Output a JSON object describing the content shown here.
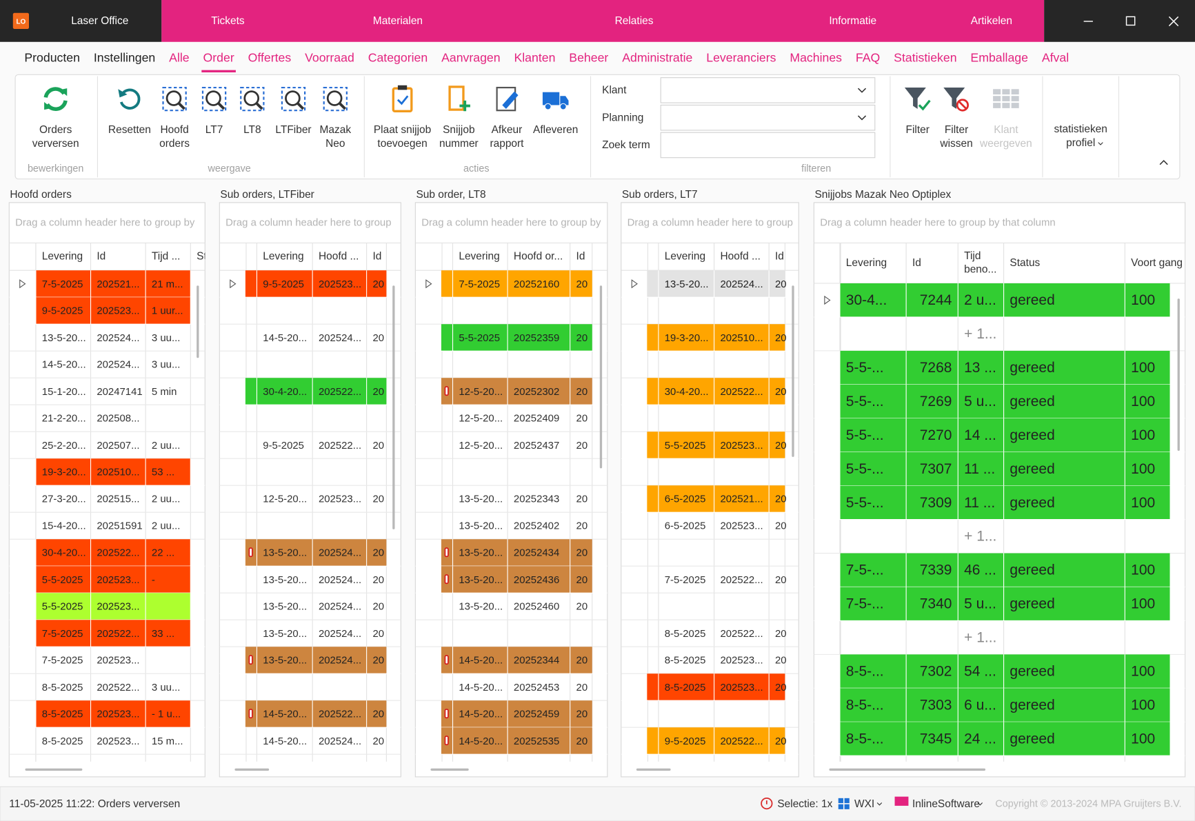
{
  "titlebar": {
    "logo": "LO",
    "app": "Laser Office",
    "nav": [
      "Tickets",
      "Materialen",
      "Relaties",
      "Informatie",
      "Artikelen"
    ]
  },
  "tabs": {
    "modules": [
      "Producten",
      "Instellingen"
    ],
    "items": [
      "Alle",
      "Order",
      "Offertes",
      "Voorraad",
      "Categorien",
      "Aanvragen",
      "Klanten",
      "Beheer",
      "Administratie",
      "Leveranciers",
      "Machines",
      "FAQ",
      "Statistieken",
      "Emballage",
      "Afval"
    ],
    "active": 1
  },
  "ribbon": {
    "groups": [
      {
        "label": "bewerkingen",
        "buttons": [
          {
            "lines": [
              "Orders",
              "verversen"
            ]
          }
        ]
      },
      {
        "label": "weergave",
        "buttons": [
          {
            "lines": [
              "Resetten"
            ]
          },
          {
            "lines": [
              "Hoofd",
              "orders"
            ]
          },
          {
            "lines": [
              "LT7"
            ]
          },
          {
            "lines": [
              "LT8"
            ]
          },
          {
            "lines": [
              "LTFiber"
            ]
          },
          {
            "lines": [
              "Mazak",
              "Neo"
            ]
          }
        ]
      },
      {
        "label": "acties",
        "buttons": [
          {
            "lines": [
              "Plaat snijjob",
              "toevoegen"
            ]
          },
          {
            "lines": [
              "Snijjob",
              "nummer"
            ]
          },
          {
            "lines": [
              "Afkeur",
              "rapport"
            ]
          },
          {
            "lines": [
              "Afleveren"
            ]
          }
        ]
      },
      {
        "label": "filteren",
        "fields": [
          {
            "label": "Klant",
            "type": "combo"
          },
          {
            "label": "Planning",
            "type": "combo"
          },
          {
            "label": "Zoek term",
            "type": "text"
          }
        ]
      },
      {
        "buttons": [
          {
            "lines": [
              "Filter"
            ]
          },
          {
            "lines": [
              "Filter",
              "wissen"
            ]
          },
          {
            "lines": [
              "Klant",
              "weergeven"
            ],
            "disabled": true
          }
        ]
      },
      {
        "buttons": [
          {
            "lines": [
              "statistieken",
              "profiel"
            ],
            "dropdown": true
          }
        ]
      }
    ]
  },
  "panels": [
    {
      "title": "Hoofd orders",
      "hint": "Drag a column header here to group by",
      "columns": [
        "Levering",
        "Id",
        "Tijd ...",
        "Sta"
      ],
      "rows": [
        {
          "cells": [
            "7-5-2025",
            "202521...",
            "21 m..."
          ],
          "color": "#ff4500"
        },
        {
          "cells": [
            "9-5-2025",
            "202523...",
            "1 uur..."
          ],
          "color": "#ff4500"
        },
        {
          "cells": [
            "13-5-20...",
            "202524...",
            "3 uu..."
          ]
        },
        {
          "cells": [
            "14-5-20...",
            "202524...",
            "3 uu..."
          ]
        },
        {
          "cells": [
            "15-1-20...",
            "20247141",
            "5 min"
          ]
        },
        {
          "cells": [
            "21-2-20...",
            "202508...",
            null
          ]
        },
        {
          "cells": [
            "25-2-20...",
            "202507...",
            "2 uu..."
          ]
        },
        {
          "cells": [
            "19-3-20...",
            "202510...",
            "53 ..."
          ],
          "color": "#ff4500"
        },
        {
          "cells": [
            "27-3-20...",
            "202515...",
            "2 uu..."
          ]
        },
        {
          "cells": [
            "15-4-20...",
            "20251591",
            "2 uu..."
          ]
        },
        {
          "cells": [
            "30-4-20...",
            "202522...",
            "22 ..."
          ],
          "color": "#ff4500"
        },
        {
          "cells": [
            "5-5-2025",
            "202523...",
            "-"
          ],
          "color": "#ff4500"
        },
        {
          "cells": [
            "5-5-2025",
            "202523...",
            null
          ],
          "color": "#adff2f"
        },
        {
          "cells": [
            "7-5-2025",
            "202522...",
            "33 ..."
          ],
          "color": "#ff4500"
        },
        {
          "cells": [
            "7-5-2025",
            "202523...",
            null
          ]
        },
        {
          "cells": [
            "8-5-2025",
            "202522...",
            "3 uu..."
          ]
        },
        {
          "cells": [
            "8-5-2025",
            "202523...",
            "- 1 u..."
          ],
          "color": "#ff4500"
        },
        {
          "cells": [
            "8-5-2025",
            "202523...",
            "15 m..."
          ]
        }
      ]
    },
    {
      "title": "Sub orders, LTFiber",
      "hint": "Drag a column header here to group",
      "columns": [
        "Levering",
        "Hoofd ...",
        "Id"
      ],
      "rows": [
        {
          "cells": [
            "9-5-2025",
            "202523...",
            "20"
          ],
          "color": "#ff4500"
        },
        {
          "cells": [
            null,
            null,
            null
          ]
        },
        {
          "cells": [
            "14-5-20...",
            "202524...",
            "20"
          ]
        },
        {
          "cells": [
            null,
            null,
            null
          ]
        },
        {
          "cells": [
            "30-4-20...",
            "202522...",
            "20"
          ],
          "color": "#32cd32"
        },
        {
          "cells": [
            null,
            null,
            null
          ]
        },
        {
          "cells": [
            "9-5-2025",
            "202522...",
            "20"
          ]
        },
        {
          "cells": [
            null,
            null,
            null
          ]
        },
        {
          "cells": [
            "12-5-20...",
            "202523...",
            "20"
          ]
        },
        {
          "cells": [
            null,
            null,
            null
          ]
        },
        {
          "cells": [
            "13-5-20...",
            "202524...",
            "20"
          ],
          "color": "#cd853f",
          "warning": true
        },
        {
          "cells": [
            "13-5-20...",
            "202524...",
            "20"
          ]
        },
        {
          "cells": [
            "13-5-20...",
            "202524...",
            "20"
          ]
        },
        {
          "cells": [
            "13-5-20...",
            "202524...",
            "20"
          ]
        },
        {
          "cells": [
            "13-5-20...",
            "202524...",
            "20"
          ],
          "color": "#cd853f",
          "warning": true
        },
        {
          "cells": [
            null,
            null,
            null
          ]
        },
        {
          "cells": [
            "14-5-20...",
            "202522...",
            "20"
          ],
          "color": "#cd853f",
          "warning": true
        },
        {
          "cells": [
            "14-5-20...",
            "202524...",
            "20"
          ]
        }
      ]
    },
    {
      "title": "Sub order, LT8",
      "hint": "Drag a column header here to group by",
      "columns": [
        "Levering",
        "Hoofd or...",
        "Id"
      ],
      "rows": [
        {
          "cells": [
            "7-5-2025",
            "20252160",
            "20"
          ],
          "color": "#ffa500"
        },
        {
          "cells": [
            null,
            null,
            null
          ]
        },
        {
          "cells": [
            "5-5-2025",
            "20252359",
            "20"
          ],
          "color": "#32cd32"
        },
        {
          "cells": [
            null,
            null,
            null
          ]
        },
        {
          "cells": [
            "12-5-20...",
            "20252302",
            "20"
          ],
          "color": "#cd853f",
          "warning": true
        },
        {
          "cells": [
            "12-5-20...",
            "20252409",
            "20"
          ]
        },
        {
          "cells": [
            "12-5-20...",
            "20252437",
            "20"
          ]
        },
        {
          "cells": [
            null,
            null,
            null
          ]
        },
        {
          "cells": [
            "13-5-20...",
            "20252343",
            "20"
          ]
        },
        {
          "cells": [
            "13-5-20...",
            "20252402",
            "20"
          ]
        },
        {
          "cells": [
            "13-5-20...",
            "20252434",
            "20"
          ],
          "color": "#cd853f",
          "warning": true
        },
        {
          "cells": [
            "13-5-20...",
            "20252436",
            "20"
          ],
          "color": "#cd853f",
          "warning": true
        },
        {
          "cells": [
            "13-5-20...",
            "20252460",
            "20"
          ]
        },
        {
          "cells": [
            null,
            null,
            null
          ]
        },
        {
          "cells": [
            "14-5-20...",
            "20252344",
            "20"
          ],
          "color": "#cd853f",
          "warning": true
        },
        {
          "cells": [
            "14-5-20...",
            "20252453",
            "20"
          ]
        },
        {
          "cells": [
            "14-5-20...",
            "20252459",
            "20"
          ],
          "color": "#cd853f",
          "warning": true
        },
        {
          "cells": [
            "14-5-20...",
            "20252535",
            "20"
          ],
          "color": "#cd853f",
          "warning": true
        }
      ]
    },
    {
      "title": "Sub orders, LT7",
      "hint": "Drag a column header here to group",
      "columns": [
        "Levering",
        "Hoofd ...",
        "Id"
      ],
      "rows": [
        {
          "cells": [
            "13-5-20...",
            "202524...",
            "20"
          ],
          "color": "#e3e3e3"
        },
        {
          "cells": [
            null,
            null,
            null
          ]
        },
        {
          "cells": [
            "19-3-20...",
            "202510...",
            "20"
          ],
          "color": "#ffa500"
        },
        {
          "cells": [
            null,
            null,
            null
          ]
        },
        {
          "cells": [
            "30-4-20...",
            "202522...",
            "20"
          ],
          "color": "#ffa500"
        },
        {
          "cells": [
            null,
            null,
            null
          ]
        },
        {
          "cells": [
            "5-5-2025",
            "202523...",
            "20"
          ],
          "color": "#ffa500"
        },
        {
          "cells": [
            null,
            null,
            null
          ]
        },
        {
          "cells": [
            "6-5-2025",
            "202521...",
            "20"
          ],
          "color": "#ffa500"
        },
        {
          "cells": [
            "6-5-2025",
            "202523...",
            "20"
          ]
        },
        {
          "cells": [
            null,
            null,
            null
          ]
        },
        {
          "cells": [
            "7-5-2025",
            "202522...",
            "20"
          ]
        },
        {
          "cells": [
            null,
            null,
            null
          ]
        },
        {
          "cells": [
            "8-5-2025",
            "202522...",
            "20"
          ]
        },
        {
          "cells": [
            "8-5-2025",
            "202523...",
            "20"
          ]
        },
        {
          "cells": [
            "8-5-2025",
            "202523...",
            "20"
          ],
          "color": "#ff4500"
        },
        {
          "cells": [
            null,
            null,
            null
          ]
        },
        {
          "cells": [
            "9-5-2025",
            "202522...",
            "20"
          ],
          "color": "#ffa500"
        }
      ]
    },
    {
      "title": "Snijjobs Mazak Neo Optiplex",
      "hint": "Drag a column header here to group by that column",
      "columns": [
        "Levering",
        "Id",
        [
          "Tijd",
          "beno..."
        ],
        "Status",
        "Voort gang"
      ],
      "rows": [
        {
          "cells": [
            "30-4...",
            "7244",
            "2 u...",
            "gereed",
            "100"
          ],
          "color": "#32cd32"
        },
        {
          "cells": [
            null,
            null,
            "+ 1...",
            null,
            null
          ]
        },
        {
          "cells": [
            "5-5-...",
            "7268",
            "13 ...",
            "gereed",
            "100"
          ],
          "color": "#32cd32"
        },
        {
          "cells": [
            "5-5-...",
            "7269",
            "5 u...",
            "gereed",
            "100"
          ],
          "color": "#32cd32"
        },
        {
          "cells": [
            "5-5-...",
            "7270",
            "14 ...",
            "gereed",
            "100"
          ],
          "color": "#32cd32"
        },
        {
          "cells": [
            "5-5-...",
            "7307",
            "11 ...",
            "gereed",
            "100"
          ],
          "color": "#32cd32"
        },
        {
          "cells": [
            "5-5-...",
            "7309",
            "11 ...",
            "gereed",
            "100"
          ],
          "color": "#32cd32"
        },
        {
          "cells": [
            null,
            null,
            "+ 1...",
            null,
            null
          ]
        },
        {
          "cells": [
            "7-5-...",
            "7339",
            "46 ...",
            "gereed",
            "100"
          ],
          "color": "#32cd32"
        },
        {
          "cells": [
            "7-5-...",
            "7340",
            "5 u...",
            "gereed",
            "100"
          ],
          "color": "#32cd32"
        },
        {
          "cells": [
            null,
            null,
            "+ 1...",
            null,
            null
          ]
        },
        {
          "cells": [
            "8-5-...",
            "7302",
            "54 ...",
            "gereed",
            "100"
          ],
          "color": "#32cd32"
        },
        {
          "cells": [
            "8-5-...",
            "7303",
            "6 u...",
            "gereed",
            "100"
          ],
          "color": "#32cd32"
        },
        {
          "cells": [
            "8-5-...",
            "7345",
            "24 ...",
            "gereed",
            "100"
          ],
          "color": "#32cd32"
        }
      ]
    }
  ],
  "statusbar": {
    "message": "11-05-2025 11:22: Orders verversen",
    "selection": "Selectie: 1x",
    "theme": "WXI",
    "user": "InlineSoftware",
    "copyright": "Copyright © 2013-2024 MPA Gruijters B.V."
  }
}
